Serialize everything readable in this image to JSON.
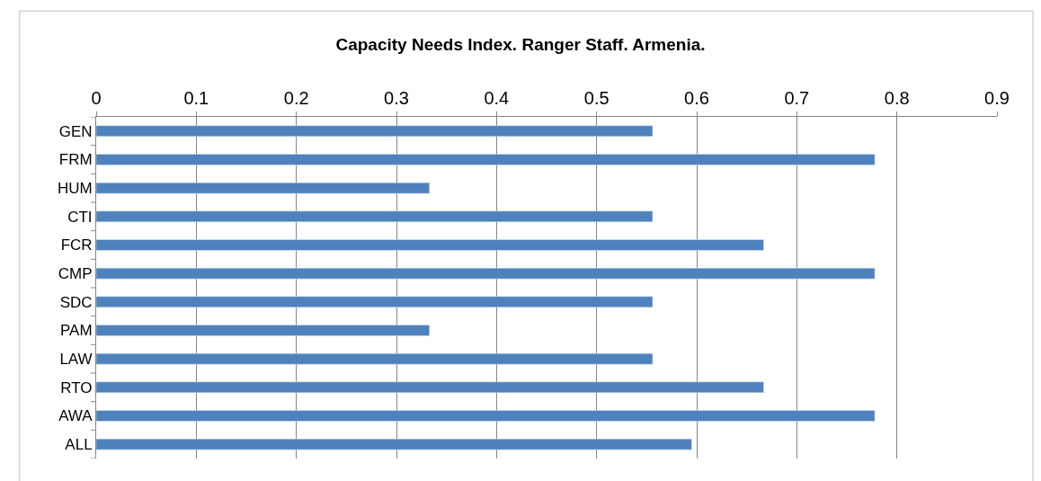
{
  "chart_data": {
    "type": "bar",
    "orientation": "horizontal",
    "title": "Capacity Needs Index. Ranger Staff. Armenia.",
    "categories": [
      "GEN",
      "FRM",
      "HUM",
      "CTI",
      "FCR",
      "CMP",
      "SDC",
      "PAM",
      "LAW",
      "RTO",
      "AWA",
      "ALL"
    ],
    "values": [
      0.556,
      0.778,
      0.333,
      0.556,
      0.667,
      0.778,
      0.556,
      0.333,
      0.556,
      0.667,
      0.778,
      0.595
    ],
    "color": "#4f81bd",
    "xlim": [
      0,
      0.9
    ],
    "xticks": [
      0,
      0.1,
      0.2,
      0.3,
      0.4,
      0.5,
      0.6,
      0.7,
      0.8,
      0.9
    ],
    "grid": "x"
  }
}
